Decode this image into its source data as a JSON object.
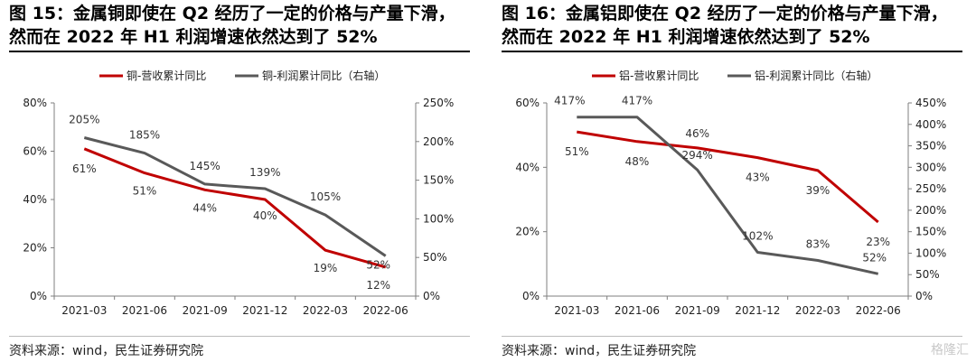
{
  "panels": [
    {
      "title": "图 15：金属铜即使在 Q2 经历了一定的价格与产量下滑，然而在 2022 年 H1 利润增速依然达到了 52%",
      "source": "资料来源：wind，民生证券研究院"
    },
    {
      "title": "图 16：金属铝即使在 Q2 经历了一定的价格与产量下滑，然而在 2022 年 H1 利润增速依然达到了 52%",
      "source": "资料来源：wind，民生证券研究院"
    }
  ],
  "watermark": "格隆汇",
  "colors": {
    "primary": "#c00000",
    "secondary": "#595959",
    "axis": "#7f7f7f"
  },
  "chart_data": [
    {
      "type": "line",
      "categories": [
        "2021-03",
        "2021-06",
        "2021-09",
        "2021-12",
        "2022-03",
        "2022-06"
      ],
      "series": [
        {
          "name": "铜-营收累计同比",
          "axis": "left",
          "values": [
            61,
            51,
            44,
            40,
            19,
            12
          ],
          "labels": [
            "61%",
            "51%",
            "44%",
            "40%",
            "19%",
            "12%"
          ]
        },
        {
          "name": "铜-利润累计同比（右轴）",
          "axis": "right",
          "values": [
            205,
            185,
            145,
            139,
            105,
            52
          ],
          "labels": [
            "205%",
            "185%",
            "145%",
            "139%",
            "105%",
            "52%"
          ]
        }
      ],
      "left_axis": {
        "ylim": [
          0,
          80
        ],
        "ticks": [
          "0%",
          "20%",
          "40%",
          "60%",
          "80%"
        ]
      },
      "right_axis": {
        "ylim": [
          0,
          250
        ],
        "ticks": [
          "0%",
          "50%",
          "100%",
          "150%",
          "200%",
          "250%"
        ]
      },
      "legend": "top-center",
      "grid": false
    },
    {
      "type": "line",
      "categories": [
        "2021-03",
        "2021-06",
        "2021-09",
        "2021-12",
        "2022-03",
        "2022-06"
      ],
      "series": [
        {
          "name": "铝-营收累计同比",
          "axis": "left",
          "values": [
            51,
            48,
            46,
            43,
            39,
            23
          ],
          "labels": [
            "51%",
            "48%",
            "46%",
            "43%",
            "39%",
            "23%"
          ]
        },
        {
          "name": "铝-利润累计同比（右轴）",
          "axis": "right",
          "values": [
            417,
            417,
            294,
            102,
            83,
            52
          ],
          "labels": [
            "417%",
            "417%",
            "294%",
            "102%",
            "83%",
            "52%"
          ]
        }
      ],
      "left_axis": {
        "ylim": [
          0,
          60
        ],
        "ticks": [
          "0%",
          "20%",
          "40%",
          "60%"
        ]
      },
      "right_axis": {
        "ylim": [
          0,
          450
        ],
        "ticks": [
          "0%",
          "50%",
          "100%",
          "150%",
          "200%",
          "250%",
          "300%",
          "350%",
          "400%",
          "450%"
        ]
      },
      "legend": "top-center",
      "grid": false
    }
  ]
}
